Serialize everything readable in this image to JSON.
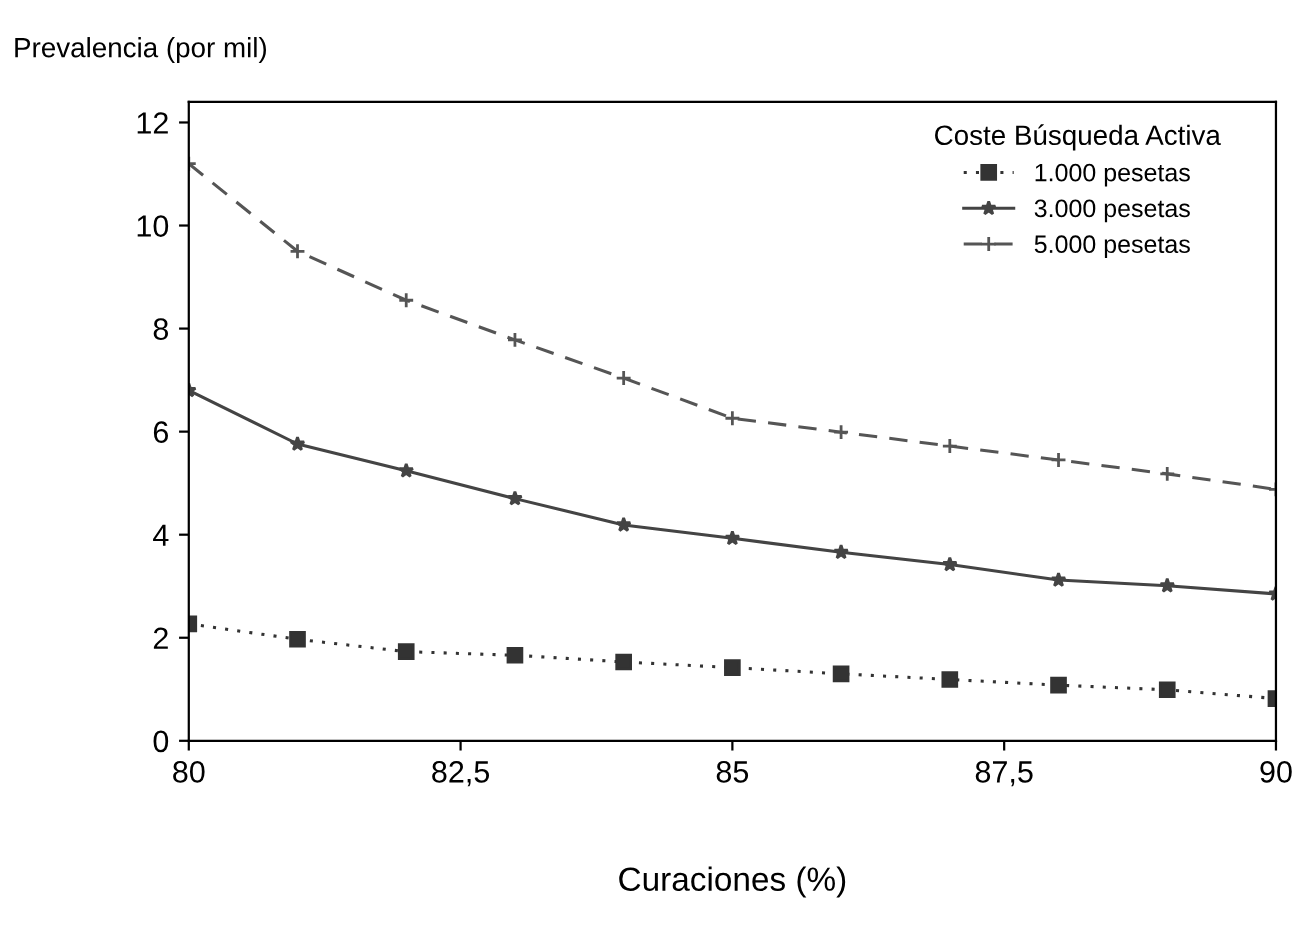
{
  "chart_data": {
    "type": "line",
    "ylabel": "Prevalencia (por mil)",
    "xlabel": "Curaciones (%)",
    "legend_title": "Coste Búsqueda Activa",
    "x": [
      80,
      81,
      82,
      83,
      84,
      85,
      86,
      87,
      88,
      89,
      90
    ],
    "series": [
      {
        "name": "1.000 pesetas",
        "color": "#333333",
        "marker": "square",
        "line_style": "dotted",
        "values": [
          2.27,
          1.97,
          1.73,
          1.66,
          1.53,
          1.42,
          1.3,
          1.19,
          1.08,
          0.99,
          0.82
        ]
      },
      {
        "name": "3.000 pesetas",
        "color": "#444444",
        "marker": "star",
        "line_style": "solid",
        "values": [
          6.8,
          5.76,
          5.24,
          4.7,
          4.19,
          3.93,
          3.66,
          3.42,
          3.12,
          3.01,
          2.85
        ]
      },
      {
        "name": "5.000 pesetas",
        "color": "#555555",
        "marker": "cross",
        "line_style": "dashed",
        "values": [
          11.2,
          9.5,
          8.55,
          7.78,
          7.04,
          6.26,
          5.99,
          5.72,
          5.45,
          5.18,
          4.88
        ]
      }
    ],
    "xlim": [
      80,
      90
    ],
    "xticks": [
      80,
      {
        "value": 82.5,
        "label": "82,5"
      },
      85,
      {
        "value": 87.5,
        "label": "87,5"
      },
      90
    ],
    "ylim": [
      0,
      12.4
    ],
    "yticks": [
      0,
      2,
      4,
      6,
      8,
      10,
      12
    ],
    "legend": "top right"
  }
}
